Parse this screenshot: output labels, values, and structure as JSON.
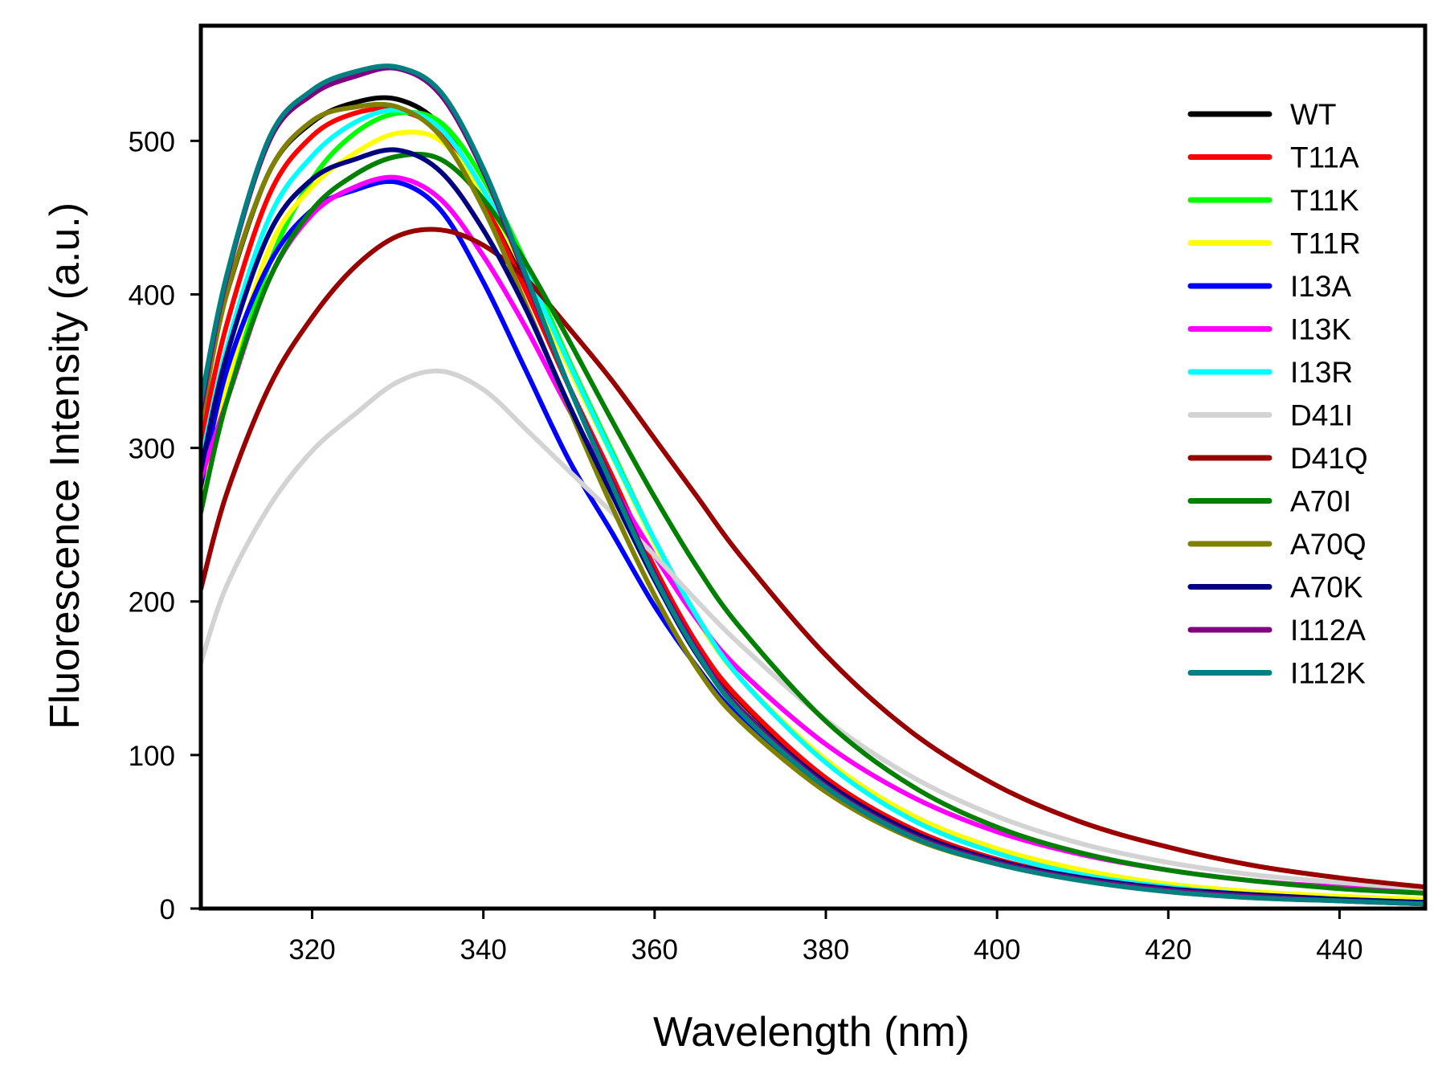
{
  "chart_data": {
    "type": "line",
    "title": "",
    "xlabel": "Wavelength (nm)",
    "ylabel": "Fluorescence Intensity (a.u.)",
    "xlim": [
      307,
      450
    ],
    "ylim": [
      0,
      575
    ],
    "xticks": [
      320,
      340,
      360,
      380,
      400,
      420,
      440
    ],
    "yticks": [
      0,
      100,
      200,
      300,
      400,
      500
    ],
    "grid": false,
    "legend_position": "top-right",
    "x": [
      307,
      310,
      315,
      320,
      325,
      330,
      335,
      340,
      345,
      350,
      355,
      360,
      365,
      370,
      380,
      390,
      400,
      410,
      420,
      430,
      440,
      450
    ],
    "series": [
      {
        "name": "WT",
        "color": "#000000",
        "values": [
          330,
          400,
          480,
          512,
          525,
          527,
          510,
          465,
          405,
          340,
          282,
          222,
          172,
          135,
          85,
          52,
          32,
          20,
          13,
          9,
          6,
          4
        ]
      },
      {
        "name": "T11A",
        "color": "#ff0000",
        "values": [
          305,
          380,
          465,
          503,
          518,
          520,
          505,
          460,
          402,
          340,
          282,
          222,
          172,
          136,
          85,
          52,
          32,
          20,
          13,
          9,
          6,
          4
        ]
      },
      {
        "name": "T11K",
        "color": "#00ff00",
        "values": [
          262,
          330,
          420,
          475,
          505,
          518,
          512,
          475,
          420,
          357,
          298,
          240,
          190,
          150,
          96,
          60,
          38,
          24,
          15,
          10,
          7,
          5
        ]
      },
      {
        "name": "T11R",
        "color": "#ffff00",
        "values": [
          265,
          340,
          430,
          470,
          492,
          505,
          500,
          465,
          412,
          352,
          295,
          238,
          188,
          150,
          97,
          61,
          39,
          25,
          16,
          11,
          8,
          6
        ]
      },
      {
        "name": "I13A",
        "color": "#0000ff",
        "values": [
          275,
          350,
          420,
          455,
          468,
          473,
          455,
          408,
          350,
          292,
          245,
          197,
          157,
          124,
          78,
          48,
          30,
          19,
          12,
          8,
          6,
          4
        ]
      },
      {
        "name": "I13K",
        "color": "#ff00ff",
        "values": [
          280,
          330,
          410,
          452,
          470,
          476,
          462,
          425,
          378,
          325,
          276,
          230,
          188,
          155,
          107,
          73,
          50,
          35,
          25,
          18,
          14,
          11
        ]
      },
      {
        "name": "I13R",
        "color": "#00ffff",
        "values": [
          290,
          365,
          450,
          490,
          512,
          520,
          508,
          468,
          415,
          355,
          296,
          240,
          190,
          150,
          95,
          58,
          36,
          22,
          14,
          9,
          6,
          4
        ]
      },
      {
        "name": "D41I",
        "color": "#d3d3d3",
        "values": [
          160,
          210,
          262,
          298,
          322,
          343,
          350,
          338,
          312,
          285,
          258,
          230,
          200,
          172,
          123,
          86,
          60,
          42,
          30,
          22,
          17,
          13
        ]
      },
      {
        "name": "D41Q",
        "color": "#990000",
        "values": [
          208,
          270,
          340,
          385,
          418,
          438,
          442,
          432,
          410,
          378,
          344,
          306,
          268,
          230,
          165,
          115,
          80,
          56,
          40,
          28,
          20,
          14
        ]
      },
      {
        "name": "A70I",
        "color": "#008000",
        "values": [
          258,
          330,
          410,
          455,
          478,
          490,
          488,
          462,
          420,
          370,
          318,
          268,
          222,
          183,
          122,
          80,
          53,
          36,
          25,
          18,
          13,
          10
        ]
      },
      {
        "name": "A70Q",
        "color": "#808000",
        "values": [
          318,
          400,
          480,
          513,
          522,
          522,
          503,
          456,
          393,
          326,
          262,
          204,
          156,
          122,
          76,
          46,
          29,
          18,
          11,
          7,
          5,
          3
        ]
      },
      {
        "name": "A70K",
        "color": "#000080",
        "values": [
          285,
          360,
          440,
          475,
          488,
          494,
          480,
          442,
          390,
          328,
          270,
          214,
          165,
          130,
          82,
          50,
          31,
          20,
          13,
          9,
          6,
          4
        ]
      },
      {
        "name": "I112A",
        "color": "#800080",
        "values": [
          325,
          410,
          500,
          530,
          542,
          547,
          530,
          480,
          410,
          340,
          278,
          218,
          168,
          130,
          80,
          48,
          30,
          19,
          12,
          8,
          5,
          3
        ]
      },
      {
        "name": "I112K",
        "color": "#008080",
        "values": [
          330,
          412,
          502,
          533,
          545,
          548,
          532,
          482,
          412,
          340,
          276,
          216,
          166,
          128,
          79,
          47,
          29,
          18,
          11,
          7,
          5,
          3
        ]
      }
    ]
  }
}
